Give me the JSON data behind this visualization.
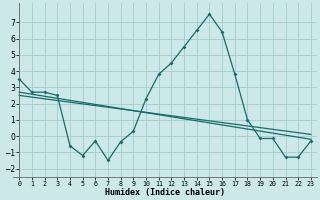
{
  "xlabel": "Humidex (Indice chaleur)",
  "xlim": [
    -0.5,
    23.5
  ],
  "ylim": [
    -2.5,
    8.2
  ],
  "yticks": [
    -2,
    -1,
    0,
    1,
    2,
    3,
    4,
    5,
    6,
    7
  ],
  "xticks": [
    0,
    1,
    2,
    3,
    4,
    5,
    6,
    7,
    8,
    9,
    10,
    11,
    12,
    13,
    14,
    15,
    16,
    17,
    18,
    19,
    20,
    21,
    22,
    23
  ],
  "bg_color": "#cce8e8",
  "grid_color": "#aad0d0",
  "line_color": "#1a6b6b",
  "curve1_x": [
    0,
    1,
    2,
    3,
    4,
    5,
    6,
    7,
    8,
    9,
    10,
    11,
    12,
    13,
    14,
    15,
    16,
    17,
    18,
    19,
    20,
    21,
    22,
    23
  ],
  "curve1_y": [
    3.5,
    2.7,
    2.7,
    2.5,
    -0.6,
    -1.2,
    -0.3,
    -1.5,
    -0.35,
    0.3,
    2.3,
    3.8,
    4.5,
    5.5,
    6.5,
    7.5,
    6.4,
    3.8,
    1.0,
    -0.15,
    -0.15,
    -1.3,
    -1.3,
    -0.3
  ],
  "curve2_x": [
    0,
    23
  ],
  "curve2_y": [
    2.7,
    -0.2
  ],
  "curve3_x": [
    0,
    23
  ],
  "curve3_y": [
    2.5,
    0.1
  ]
}
